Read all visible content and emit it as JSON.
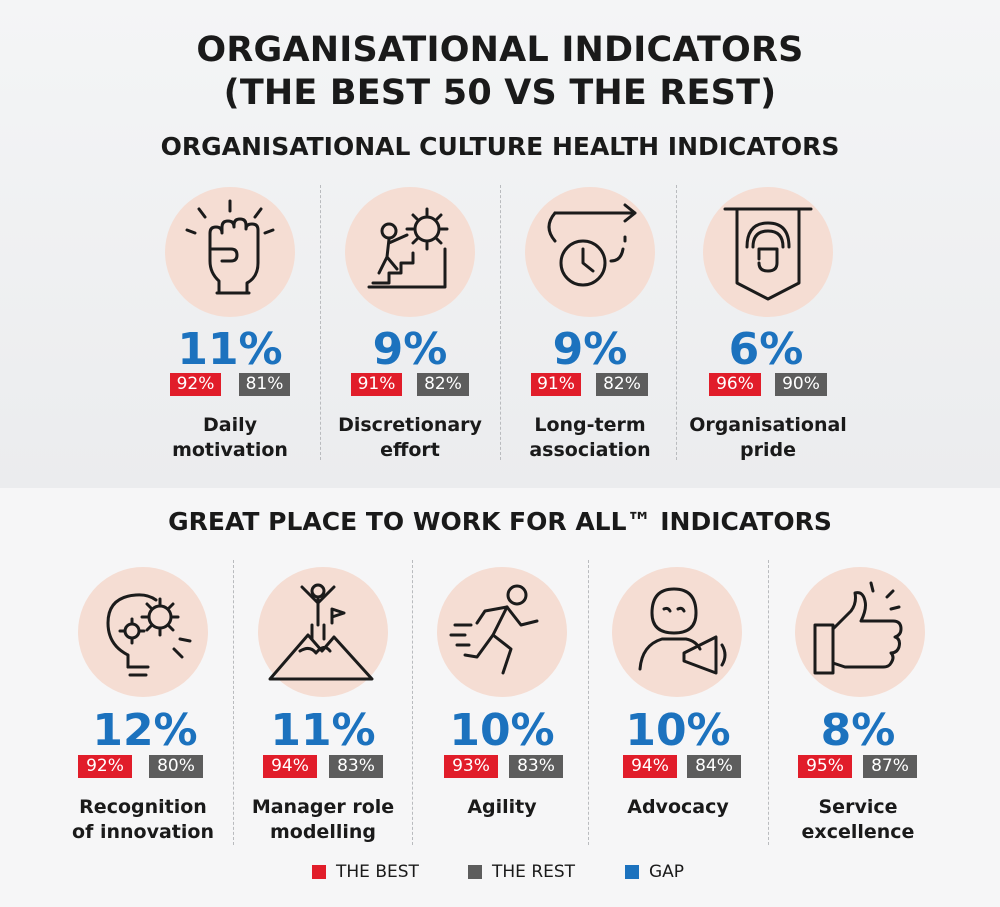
{
  "title_line1": "ORGANISATIONAL INDICATORS",
  "title_line2": "(THE BEST 50 VS THE REST)",
  "section1_title": "ORGANISATIONAL CULTURE HEALTH INDICATORS",
  "section2_title": "GREAT PLACE TO WORK FOR ALL™ INDICATORS",
  "colors": {
    "best": "#e11d2a",
    "rest": "#5d5d5d",
    "gap": "#1c72be",
    "icon_bg": "#f5ddd3"
  },
  "chart_data": [
    {
      "type": "table",
      "title": "ORGANISATIONAL CULTURE HEALTH INDICATORS",
      "columns": [
        "THE BEST",
        "THE REST",
        "GAP"
      ],
      "rows": [
        {
          "icon": "raised-fist-icon",
          "label_line1": "Daily",
          "label_line2": "motivation",
          "best": "92%",
          "rest": "81%",
          "gap": "11%"
        },
        {
          "icon": "climber-gear-icon",
          "label_line1": "Discretionary",
          "label_line2": "effort",
          "best": "91%",
          "rest": "82%",
          "gap": "9%"
        },
        {
          "icon": "clock-arrow-icon",
          "label_line1": "Long-term",
          "label_line2": "association",
          "best": "91%",
          "rest": "82%",
          "gap": "9%"
        },
        {
          "icon": "banner-fist-icon",
          "label_line1": "Organisational",
          "label_line2": "pride",
          "best": "96%",
          "rest": "90%",
          "gap": "6%"
        }
      ]
    },
    {
      "type": "table",
      "title": "GREAT PLACE TO WORK FOR ALL™ INDICATORS",
      "columns": [
        "THE BEST",
        "THE REST",
        "GAP"
      ],
      "rows": [
        {
          "icon": "lightbulb-gears-icon",
          "label_line1": "Recognition",
          "label_line2": "of innovation",
          "best": "92%",
          "rest": "80%",
          "gap": "12%"
        },
        {
          "icon": "mountain-climber-icon",
          "label_line1": "Manager role",
          "label_line2": "modelling",
          "best": "94%",
          "rest": "83%",
          "gap": "11%"
        },
        {
          "icon": "running-person-icon",
          "label_line1": "Agility",
          "label_line2": "",
          "best": "93%",
          "rest": "83%",
          "gap": "10%"
        },
        {
          "icon": "megaphone-person-icon",
          "label_line1": "Advocacy",
          "label_line2": "",
          "best": "94%",
          "rest": "84%",
          "gap": "10%"
        },
        {
          "icon": "thumbs-up-icon",
          "label_line1": "Service",
          "label_line2": "excellence",
          "best": "95%",
          "rest": "87%",
          "gap": "8%"
        }
      ]
    }
  ],
  "legend": [
    {
      "label": "THE BEST",
      "color": "#e11d2a"
    },
    {
      "label": "THE REST",
      "color": "#5d5d5d"
    },
    {
      "label": "GAP",
      "color": "#1c72be"
    }
  ]
}
